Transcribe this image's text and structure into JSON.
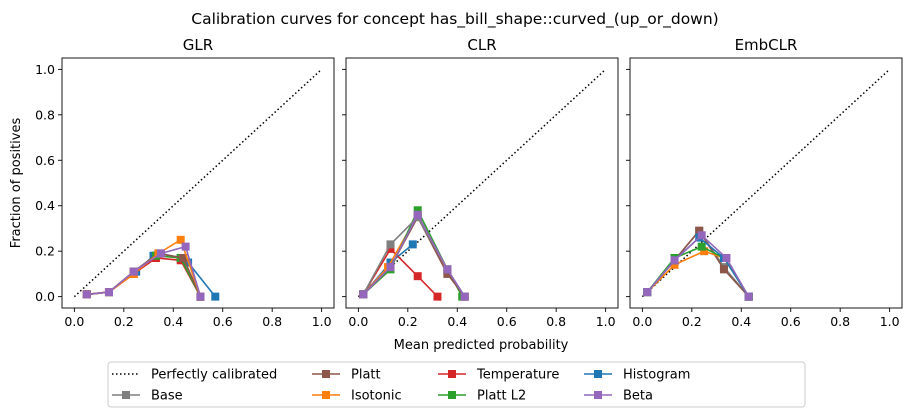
{
  "figure": {
    "title": "Calibration curves for concept has_bill_shape::curved_(up_or_down)",
    "xlabel": "Mean predicted probability",
    "ylabel": "Fraction of positives"
  },
  "colors": {
    "Base": "#7f7f7f",
    "Platt": "#8c564b",
    "Isotonic": "#ff7f0e",
    "Temperature": "#d62728",
    "Platt L2": "#2ca02c",
    "Histogram": "#1f77b4",
    "Beta": "#9467bd",
    "Perfectly calibrated": "#000000"
  },
  "legend": {
    "placement": "bottom-center",
    "entries": [
      "Perfectly calibrated",
      "Base",
      "Platt",
      "Isotonic",
      "Temperature",
      "Platt L2",
      "Histogram",
      "Beta"
    ]
  },
  "chart_data": [
    {
      "type": "line",
      "title": "GLR",
      "xlim": [
        -0.05,
        1.05
      ],
      "ylim": [
        -0.05,
        1.05
      ],
      "ticks": [
        "0.0",
        "0.2",
        "0.4",
        "0.6",
        "0.8",
        "1.0"
      ],
      "reference": {
        "name": "Perfectly calibrated",
        "x": [
          0,
          1
        ],
        "y": [
          0,
          1
        ]
      },
      "series": [
        {
          "name": "Histogram",
          "x": [
            0.05,
            0.14,
            0.25,
            0.32,
            0.35,
            0.43,
            0.46,
            0.57
          ],
          "y": [
            0.01,
            0.02,
            0.11,
            0.18,
            0.19,
            0.17,
            0.15,
            0.0
          ]
        },
        {
          "name": "Temperature",
          "x": [
            0.05,
            0.14,
            0.24,
            0.33,
            0.43,
            0.51
          ],
          "y": [
            0.01,
            0.02,
            0.1,
            0.17,
            0.16,
            0.0
          ]
        },
        {
          "name": "Platt L2",
          "x": [
            0.05,
            0.14,
            0.24,
            0.33,
            0.43,
            0.51
          ],
          "y": [
            0.01,
            0.02,
            0.11,
            0.18,
            0.17,
            0.0
          ]
        },
        {
          "name": "Base",
          "x": [
            0.05,
            0.14,
            0.24,
            0.34,
            0.44,
            0.51
          ],
          "y": [
            0.01,
            0.02,
            0.11,
            0.19,
            0.17,
            0.0
          ]
        },
        {
          "name": "Platt",
          "x": [
            0.05,
            0.14,
            0.24,
            0.34,
            0.44,
            0.51
          ],
          "y": [
            0.01,
            0.02,
            0.11,
            0.19,
            0.17,
            0.0
          ]
        },
        {
          "name": "Isotonic",
          "x": [
            0.05,
            0.14,
            0.24,
            0.34,
            0.43,
            0.51
          ],
          "y": [
            0.01,
            0.02,
            0.1,
            0.19,
            0.25,
            0.0
          ]
        },
        {
          "name": "Beta",
          "x": [
            0.05,
            0.14,
            0.24,
            0.35,
            0.45,
            0.51
          ],
          "y": [
            0.01,
            0.02,
            0.11,
            0.19,
            0.22,
            0.0
          ]
        }
      ]
    },
    {
      "type": "line",
      "title": "CLR",
      "xlim": [
        -0.05,
        1.05
      ],
      "ylim": [
        -0.05,
        1.05
      ],
      "ticks": [
        "0.0",
        "0.2",
        "0.4",
        "0.6",
        "0.8",
        "1.0"
      ],
      "reference": {
        "name": "Perfectly calibrated",
        "x": [
          0,
          1
        ],
        "y": [
          0,
          1
        ]
      },
      "series": [
        {
          "name": "Histogram",
          "x": [
            0.02,
            0.13,
            0.22
          ],
          "y": [
            0.01,
            0.15,
            0.23
          ]
        },
        {
          "name": "Temperature",
          "x": [
            0.02,
            0.13,
            0.24,
            0.32
          ],
          "y": [
            0.01,
            0.21,
            0.09,
            0.0
          ]
        },
        {
          "name": "Isotonic",
          "x": [
            0.02,
            0.12,
            0.24,
            0.36,
            0.43
          ],
          "y": [
            0.01,
            0.13,
            0.36,
            0.11,
            0.0
          ]
        },
        {
          "name": "Platt L2",
          "x": [
            0.02,
            0.13,
            0.24,
            0.36,
            0.42
          ],
          "y": [
            0.01,
            0.12,
            0.38,
            0.12,
            0.0
          ]
        },
        {
          "name": "Platt",
          "x": [
            0.02,
            0.13,
            0.24,
            0.36,
            0.43
          ],
          "y": [
            0.01,
            0.13,
            0.35,
            0.1,
            0.0
          ]
        },
        {
          "name": "Base",
          "x": [
            0.02,
            0.13,
            0.24,
            0.36,
            0.43
          ],
          "y": [
            0.01,
            0.23,
            0.35,
            0.12,
            0.0
          ]
        },
        {
          "name": "Beta",
          "x": [
            0.02,
            0.13,
            0.24,
            0.36,
            0.43
          ],
          "y": [
            0.01,
            0.13,
            0.36,
            0.12,
            0.0
          ]
        }
      ]
    },
    {
      "type": "line",
      "title": "EmbCLR",
      "xlim": [
        -0.05,
        1.05
      ],
      "ylim": [
        -0.05,
        1.05
      ],
      "ticks": [
        "0.0",
        "0.2",
        "0.4",
        "0.6",
        "0.8",
        "1.0"
      ],
      "reference": {
        "name": "Perfectly calibrated",
        "x": [
          0,
          1
        ],
        "y": [
          0,
          1
        ]
      },
      "series": [
        {
          "name": "Base",
          "x": [
            0.02,
            0.13,
            0.23,
            0.33,
            0.43
          ],
          "y": [
            0.02,
            0.16,
            0.29,
            0.13,
            0.0
          ]
        },
        {
          "name": "Platt",
          "x": [
            0.02,
            0.13,
            0.23,
            0.33,
            0.43
          ],
          "y": [
            0.02,
            0.16,
            0.29,
            0.12,
            0.0
          ]
        },
        {
          "name": "Isotonic",
          "x": [
            0.02,
            0.13,
            0.25,
            0.33,
            0.43
          ],
          "y": [
            0.02,
            0.14,
            0.2,
            0.17,
            0.0
          ]
        },
        {
          "name": "Platt L2",
          "x": [
            0.02,
            0.13,
            0.24,
            0.33,
            0.43
          ],
          "y": [
            0.02,
            0.17,
            0.22,
            0.17,
            0.0
          ]
        },
        {
          "name": "Histogram",
          "x": [
            0.02,
            0.13,
            0.23,
            0.33,
            0.43
          ],
          "y": [
            0.02,
            0.16,
            0.26,
            0.17,
            0.0
          ]
        },
        {
          "name": "Beta",
          "x": [
            0.02,
            0.13,
            0.24,
            0.34,
            0.43
          ],
          "y": [
            0.02,
            0.16,
            0.27,
            0.17,
            0.0
          ]
        }
      ]
    }
  ]
}
